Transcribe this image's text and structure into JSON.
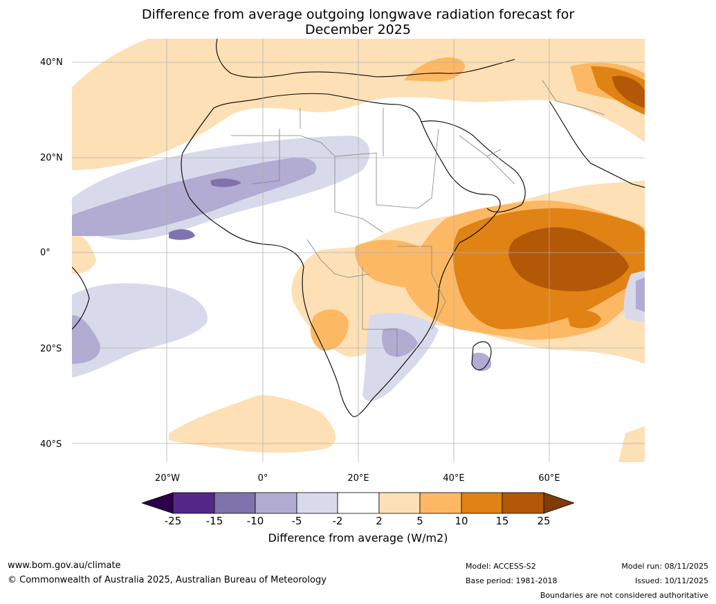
{
  "title": {
    "line1": "Difference from average outgoing longwave radiation forecast for",
    "line2": "December 2025"
  },
  "axes": {
    "lat_labels": [
      "40°N",
      "20°N",
      "0°",
      "20°S",
      "40°S"
    ],
    "lon_labels": [
      "20°W",
      "0°",
      "20°E",
      "40°E",
      "60°E"
    ]
  },
  "colorbar": {
    "ticks": [
      "-25",
      "-15",
      "-10",
      "-5",
      "-2",
      "2",
      "5",
      "10",
      "15",
      "25"
    ],
    "label": "Difference from average (W/m2)",
    "colors": [
      "#2d004b",
      "#542788",
      "#8073ac",
      "#b2abd2",
      "#d8daeb",
      "#ffffff",
      "#fee0b6",
      "#fdb863",
      "#e08214",
      "#b35806",
      "#7f3b08"
    ]
  },
  "footer": {
    "website": "www.bom.gov.au/climate",
    "copyright": "© Commonwealth of Australia 2025, Australian Bureau of Meteorology",
    "model": "Model: ACCESS-S2",
    "base_period": "Base period: 1981-2018",
    "model_run": "Model run: 08/11/2025",
    "issued": "Issued: 10/11/2025",
    "disclaimer": "Boundaries are not considered authoritative"
  }
}
